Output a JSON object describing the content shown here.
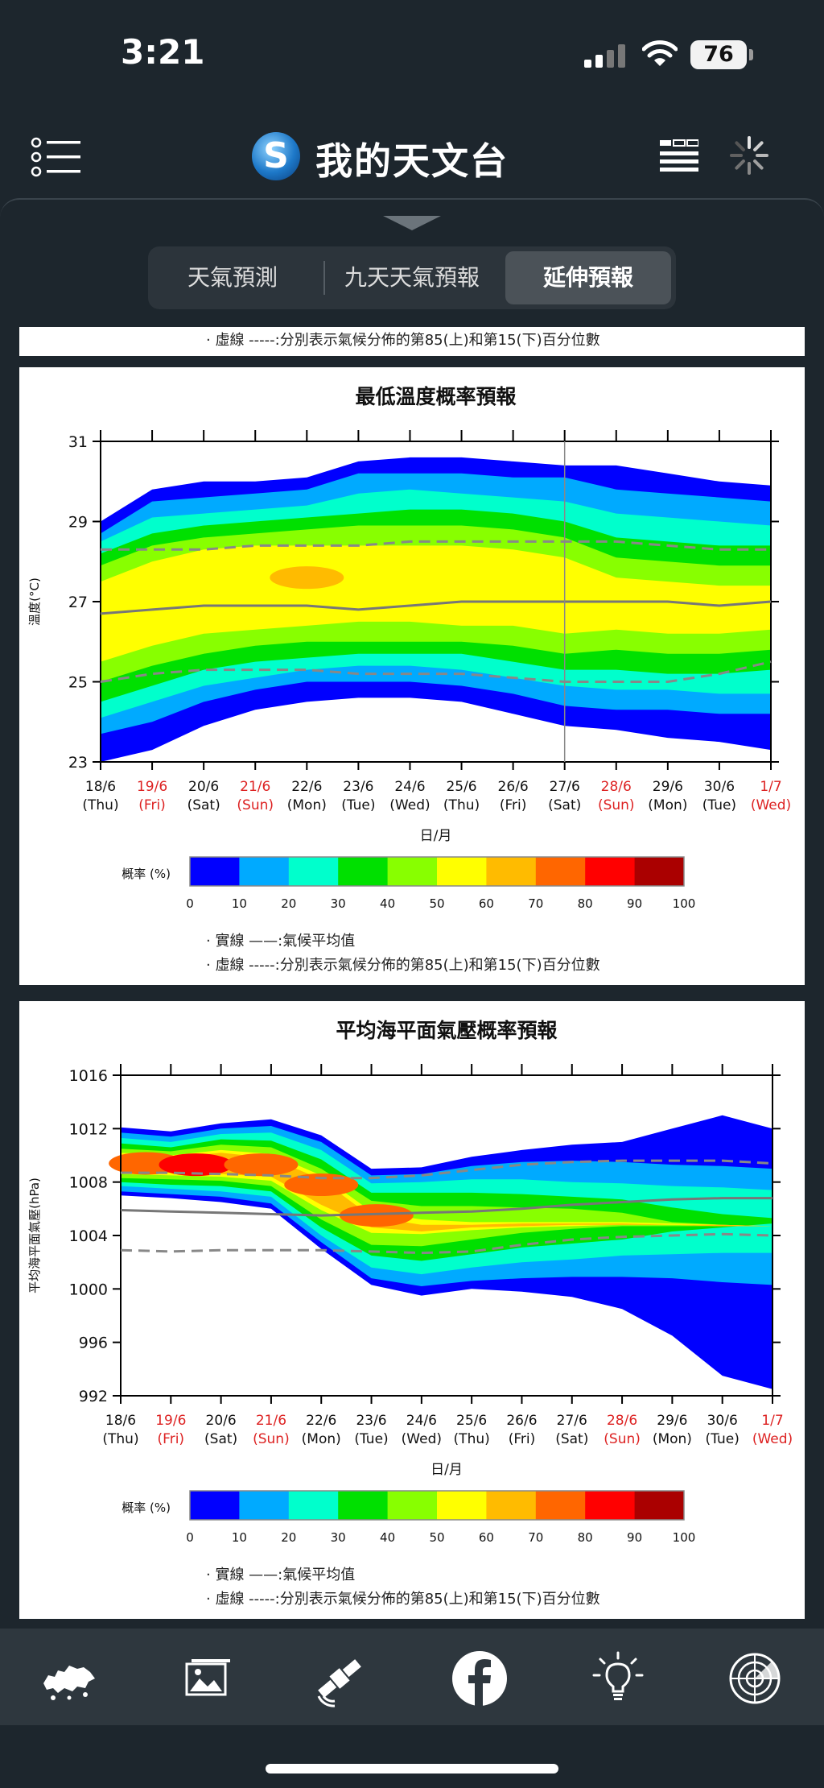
{
  "status_bar": {
    "time": "3:21",
    "battery": "76"
  },
  "header": {
    "title": "我的天文台"
  },
  "tabs": [
    {
      "label": "天氣預測",
      "active": false
    },
    {
      "label": "九天天氣預報",
      "active": false
    },
    {
      "label": "延伸預報",
      "active": true
    }
  ],
  "top_partial": {
    "note": "· 虛線 -----:分別表示氣候分佈的第85(上)和第15(下)百分位數"
  },
  "colors": {
    "background": "#1d262d",
    "probability_scale": [
      "#0000ff",
      "#00aaff",
      "#00ffcc",
      "#00e000",
      "#88ff00",
      "#ffff00",
      "#ffbb00",
      "#ff6600",
      "#ff0000",
      "#aa0000"
    ]
  },
  "chart_data": [
    {
      "type": "heatmap",
      "title": "最低溫度概率預報",
      "ylabel": "溫度(°C)",
      "xlabel": "日/月",
      "ylim": [
        23,
        31
      ],
      "yticks": [
        "23",
        "25",
        "27",
        "29",
        "31"
      ],
      "x_dates": [
        "18/6",
        "19/6",
        "20/6",
        "21/6",
        "22/6",
        "23/6",
        "24/6",
        "25/6",
        "26/6",
        "27/6",
        "28/6",
        "29/6",
        "30/6",
        "1/7"
      ],
      "x_days": [
        "(Thu)",
        "(Fri)",
        "(Sat)",
        "(Sun)",
        "(Mon)",
        "(Tue)",
        "(Wed)",
        "(Thu)",
        "(Fri)",
        "(Sat)",
        "(Sun)",
        "(Mon)",
        "(Tue)",
        "(Wed)"
      ],
      "holiday_days": [
        1,
        3,
        10,
        13
      ],
      "climate_mean": [
        26.7,
        26.8,
        26.9,
        26.9,
        26.9,
        26.8,
        26.9,
        27.0,
        27.0,
        27.0,
        27.0,
        27.0,
        26.9,
        27.0
      ],
      "p85": [
        28.3,
        28.3,
        28.3,
        28.4,
        28.4,
        28.4,
        28.5,
        28.5,
        28.5,
        28.5,
        28.5,
        28.4,
        28.3,
        28.3
      ],
      "p15": [
        25.0,
        25.2,
        25.3,
        25.3,
        25.3,
        25.2,
        25.2,
        25.2,
        25.1,
        25.0,
        25.0,
        25.0,
        25.2,
        25.5
      ],
      "prob_bands": [
        {
          "prob": "0-10",
          "upper": [
            29.0,
            29.8,
            30.0,
            30.0,
            30.1,
            30.5,
            30.6,
            30.6,
            30.5,
            30.4,
            30.4,
            30.2,
            30.0,
            29.9
          ],
          "lower": [
            23.0,
            23.3,
            23.9,
            24.3,
            24.5,
            24.6,
            24.6,
            24.5,
            24.2,
            23.9,
            23.8,
            23.6,
            23.5,
            23.3
          ]
        },
        {
          "prob": "10-20",
          "upper": [
            28.7,
            29.5,
            29.6,
            29.7,
            29.8,
            30.2,
            30.2,
            30.2,
            30.1,
            30.1,
            29.8,
            29.7,
            29.6,
            29.5
          ],
          "lower": [
            23.7,
            24.0,
            24.5,
            24.8,
            25.0,
            25.0,
            25.0,
            24.9,
            24.7,
            24.4,
            24.3,
            24.3,
            24.2,
            24.2
          ]
        },
        {
          "prob": "20-30",
          "upper": [
            28.5,
            29.1,
            29.2,
            29.3,
            29.4,
            29.7,
            29.8,
            29.7,
            29.6,
            29.5,
            29.2,
            29.1,
            29.0,
            28.9
          ],
          "lower": [
            24.1,
            24.5,
            24.9,
            25.1,
            25.3,
            25.4,
            25.4,
            25.3,
            25.1,
            24.9,
            24.8,
            24.8,
            24.7,
            24.7
          ]
        },
        {
          "prob": "30-40",
          "upper": [
            28.2,
            28.7,
            28.9,
            29.0,
            29.1,
            29.2,
            29.3,
            29.3,
            29.2,
            29.0,
            28.6,
            28.5,
            28.4,
            28.4
          ],
          "lower": [
            24.5,
            24.9,
            25.3,
            25.5,
            25.6,
            25.7,
            25.7,
            25.7,
            25.5,
            25.3,
            25.3,
            25.2,
            25.2,
            25.3
          ]
        },
        {
          "prob": "40-50",
          "upper": [
            27.9,
            28.4,
            28.6,
            28.7,
            28.8,
            28.9,
            28.9,
            28.9,
            28.8,
            28.6,
            28.1,
            28.0,
            27.9,
            27.9
          ],
          "lower": [
            25.0,
            25.4,
            25.7,
            25.9,
            26.0,
            26.0,
            26.0,
            26.0,
            25.9,
            25.7,
            25.8,
            25.7,
            25.7,
            25.8
          ]
        },
        {
          "prob": "50-60",
          "upper": [
            27.5,
            28.0,
            28.3,
            28.4,
            28.4,
            28.4,
            28.4,
            28.4,
            28.3,
            28.1,
            27.6,
            27.5,
            27.4,
            27.4
          ],
          "lower": [
            25.5,
            25.9,
            26.2,
            26.3,
            26.4,
            26.5,
            26.5,
            26.4,
            26.4,
            26.2,
            26.3,
            26.2,
            26.2,
            26.3
          ]
        }
      ],
      "hotspots": [
        {
          "prob": "60-70",
          "x": 4.0,
          "y": 27.6
        }
      ],
      "legend_label": "概率 (%)",
      "legend_ticks": [
        "0",
        "10",
        "20",
        "30",
        "40",
        "50",
        "60",
        "70",
        "80",
        "90",
        "100"
      ],
      "notes": [
        "· 實線 ——:氣候平均值",
        "· 虛線 -----:分別表示氣候分佈的第85(上)和第15(下)百分位數"
      ]
    },
    {
      "type": "heatmap",
      "title": "平均海平面氣壓概率預報",
      "ylabel": "平均海平面氣壓(hPa)",
      "xlabel": "日/月",
      "ylim": [
        992,
        1016
      ],
      "yticks": [
        "992",
        "996",
        "1000",
        "1004",
        "1008",
        "1012",
        "1016"
      ],
      "x_dates": [
        "18/6",
        "19/6",
        "20/6",
        "21/6",
        "22/6",
        "23/6",
        "24/6",
        "25/6",
        "26/6",
        "27/6",
        "28/6",
        "29/6",
        "30/6",
        "1/7"
      ],
      "x_days": [
        "(Thu)",
        "(Fri)",
        "(Sat)",
        "(Sun)",
        "(Mon)",
        "(Tue)",
        "(Wed)",
        "(Thu)",
        "(Fri)",
        "(Sat)",
        "(Sun)",
        "(Mon)",
        "(Tue)",
        "(Wed)"
      ],
      "holiday_days": [
        1,
        3,
        10,
        13
      ],
      "climate_mean": [
        1005.9,
        1005.8,
        1005.7,
        1005.6,
        1005.5,
        1005.6,
        1005.7,
        1005.8,
        1006.0,
        1006.3,
        1006.5,
        1006.7,
        1006.8,
        1006.8
      ],
      "p85": [
        1008.7,
        1008.7,
        1008.6,
        1008.5,
        1008.3,
        1008.3,
        1008.5,
        1008.9,
        1009.3,
        1009.5,
        1009.6,
        1009.6,
        1009.6,
        1009.4
      ],
      "p15": [
        1002.9,
        1002.8,
        1002.9,
        1002.9,
        1002.9,
        1002.8,
        1002.7,
        1002.8,
        1003.3,
        1003.7,
        1003.9,
        1004.0,
        1004.1,
        1004.0
      ],
      "prob_bands": [
        {
          "prob": "0-10",
          "upper": [
            1012.1,
            1011.8,
            1012.4,
            1012.7,
            1011.5,
            1009.0,
            1009.1,
            1009.9,
            1010.4,
            1010.8,
            1011.0,
            1012.0,
            1013.0,
            1012.0
          ],
          "lower": [
            1007.0,
            1006.8,
            1006.5,
            1006.0,
            1003.0,
            1000.3,
            999.5,
            1000.0,
            999.8,
            999.4,
            998.5,
            996.5,
            993.5,
            992.5
          ]
        },
        {
          "prob": "10-20",
          "upper": [
            1011.7,
            1011.4,
            1012.0,
            1012.2,
            1011.0,
            1008.5,
            1008.6,
            1009.2,
            1009.5,
            1009.6,
            1009.5,
            1009.3,
            1009.2,
            1009.0
          ],
          "lower": [
            1007.3,
            1007.1,
            1006.9,
            1006.4,
            1003.5,
            1000.8,
            1000.2,
            1000.6,
            1000.8,
            1000.9,
            1000.9,
            1000.8,
            1000.5,
            1000.3
          ]
        },
        {
          "prob": "20-30",
          "upper": [
            1011.3,
            1011.0,
            1011.6,
            1011.7,
            1010.4,
            1007.9,
            1008.0,
            1008.2,
            1008.2,
            1008.0,
            1007.9,
            1007.7,
            1007.6,
            1007.4
          ],
          "lower": [
            1007.7,
            1007.5,
            1007.3,
            1006.9,
            1004.0,
            1001.6,
            1001.1,
            1001.6,
            1002.0,
            1002.2,
            1002.5,
            1002.6,
            1002.7,
            1002.7
          ]
        },
        {
          "prob": "30-40",
          "upper": [
            1010.9,
            1010.6,
            1011.2,
            1011.1,
            1009.7,
            1007.2,
            1007.2,
            1007.2,
            1007.1,
            1006.9,
            1006.7,
            1006.1,
            1005.6,
            1005.3
          ],
          "lower": [
            1008.0,
            1007.8,
            1007.7,
            1007.3,
            1004.6,
            1002.5,
            1002.1,
            1002.6,
            1003.1,
            1003.4,
            1003.7,
            1004.3,
            1004.6,
            1004.9
          ]
        },
        {
          "prob": "40-50",
          "upper": [
            1010.5,
            1010.3,
            1010.8,
            1010.6,
            1009.0,
            1006.6,
            1006.2,
            1006.2,
            1006.1,
            1006.0,
            1005.7,
            1005.0,
            1004.8,
            1004.7
          ],
          "lower": [
            1008.3,
            1008.2,
            1008.1,
            1007.7,
            1005.2,
            1003.3,
            1003.2,
            1003.7,
            1004.2,
            1004.5,
            1004.7,
            1004.7,
            1004.7,
            1004.7
          ]
        },
        {
          "prob": "50-60",
          "upper": [
            1010.2,
            1010.0,
            1010.4,
            1010.1,
            1008.5,
            1005.8,
            1005.2,
            1005.0,
            1005.0,
            1005.0,
            1005.0,
            1004.9,
            1004.8,
            1004.7
          ],
          "lower": [
            1008.6,
            1008.5,
            1008.4,
            1008.1,
            1005.9,
            1004.2,
            1004.1,
            1004.4,
            1004.6,
            1004.7,
            1004.8,
            1004.8,
            1004.7,
            1004.7
          ]
        },
        {
          "prob": "60-70",
          "upper": [
            1010.0,
            1009.8,
            1010.2,
            1009.8,
            1008.2,
            1005.4,
            1004.8,
            1004.8,
            1004.9,
            1004.9,
            1004.9,
            1004.8,
            1004.8,
            1004.7
          ],
          "lower": [
            1008.8,
            1008.7,
            1008.6,
            1008.4,
            1006.3,
            1004.6,
            1004.3,
            1004.6,
            1004.7,
            1004.8,
            1004.8,
            1004.8,
            1004.7,
            1004.7
          ]
        }
      ],
      "hotspots": [
        {
          "prob": "70-80",
          "x": 0.5,
          "y": 1009.4
        },
        {
          "prob": "80-90",
          "x": 1.5,
          "y": 1009.3
        },
        {
          "prob": "70-80",
          "x": 2.8,
          "y": 1009.3
        },
        {
          "prob": "70-80",
          "x": 4.0,
          "y": 1007.8
        },
        {
          "prob": "70-80",
          "x": 5.1,
          "y": 1005.5
        }
      ],
      "legend_label": "概率 (%)",
      "legend_ticks": [
        "0",
        "10",
        "20",
        "30",
        "40",
        "50",
        "60",
        "70",
        "80",
        "90",
        "100"
      ],
      "notes": [
        "· 實線 ——:氣候平均值",
        "· 虛線 -----:分別表示氣候分佈的第85(上)和第15(下)百分位數"
      ]
    }
  ],
  "bottom_nav": [
    {
      "icon": "hong-kong-map-icon"
    },
    {
      "icon": "image-gallery-icon"
    },
    {
      "icon": "satellite-icon"
    },
    {
      "icon": "facebook-icon"
    },
    {
      "icon": "weather-tips-bulb-icon"
    },
    {
      "icon": "radar-icon"
    }
  ]
}
